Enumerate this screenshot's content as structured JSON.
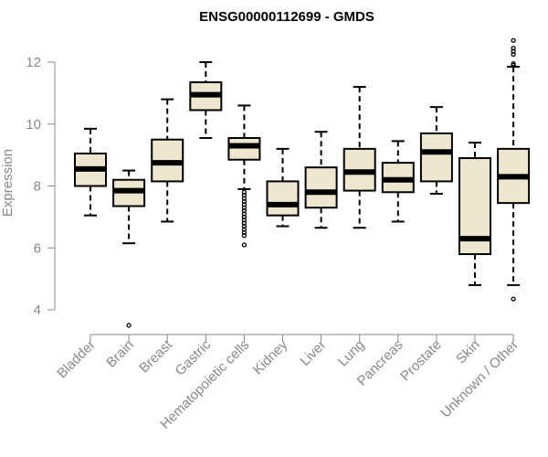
{
  "chart_data": {
    "type": "box",
    "title": "ENSG00000112699 - GMDS",
    "ylabel": "Expression",
    "xlabel": "",
    "ylim": [
      3.3,
      12.9
    ],
    "yticks": [
      4,
      6,
      8,
      10,
      12
    ],
    "box_fill": "#ede7cf",
    "categories": [
      "Bladder",
      "Brain",
      "Breast",
      "Gastric",
      "Hematopoietic cells",
      "Kidney",
      "Liver",
      "Lung",
      "Pancreas",
      "Prostate",
      "Skin",
      "Unknown / Other"
    ],
    "boxes": [
      {
        "whisker_low": 7.05,
        "q1": 8.0,
        "median": 8.55,
        "q3": 9.05,
        "whisker_high": 9.85,
        "outliers": []
      },
      {
        "whisker_low": 6.15,
        "q1": 7.35,
        "median": 7.85,
        "q3": 8.2,
        "whisker_high": 8.5,
        "outliers": [
          3.5
        ]
      },
      {
        "whisker_low": 6.85,
        "q1": 8.15,
        "median": 8.75,
        "q3": 9.5,
        "whisker_high": 10.8,
        "outliers": []
      },
      {
        "whisker_low": 9.55,
        "q1": 10.45,
        "median": 10.95,
        "q3": 11.35,
        "whisker_high": 12.0,
        "outliers": []
      },
      {
        "whisker_low": 7.9,
        "q1": 8.85,
        "median": 9.3,
        "q3": 9.55,
        "whisker_high": 10.6,
        "outliers": [
          7.8,
          7.7,
          7.6,
          7.5,
          7.4,
          7.3,
          7.2,
          7.1,
          7.0,
          6.9,
          6.8,
          6.7,
          6.6,
          6.5,
          6.4,
          6.1
        ]
      },
      {
        "whisker_low": 6.7,
        "q1": 7.05,
        "median": 7.4,
        "q3": 8.15,
        "whisker_high": 9.2,
        "outliers": []
      },
      {
        "whisker_low": 6.65,
        "q1": 7.3,
        "median": 7.8,
        "q3": 8.6,
        "whisker_high": 9.75,
        "outliers": []
      },
      {
        "whisker_low": 6.65,
        "q1": 7.85,
        "median": 8.45,
        "q3": 9.2,
        "whisker_high": 11.2,
        "outliers": []
      },
      {
        "whisker_low": 6.85,
        "q1": 7.8,
        "median": 8.2,
        "q3": 8.75,
        "whisker_high": 9.45,
        "outliers": []
      },
      {
        "whisker_low": 7.75,
        "q1": 8.15,
        "median": 9.1,
        "q3": 9.7,
        "whisker_high": 10.55,
        "outliers": []
      },
      {
        "whisker_low": 4.8,
        "q1": 5.8,
        "median": 6.3,
        "q3": 8.9,
        "whisker_high": 9.4,
        "outliers": []
      },
      {
        "whisker_low": 4.8,
        "q1": 7.45,
        "median": 8.3,
        "q3": 9.2,
        "whisker_high": 11.85,
        "outliers": [
          4.35,
          11.9,
          11.95,
          12.25,
          12.35,
          12.45,
          12.7
        ]
      }
    ]
  }
}
